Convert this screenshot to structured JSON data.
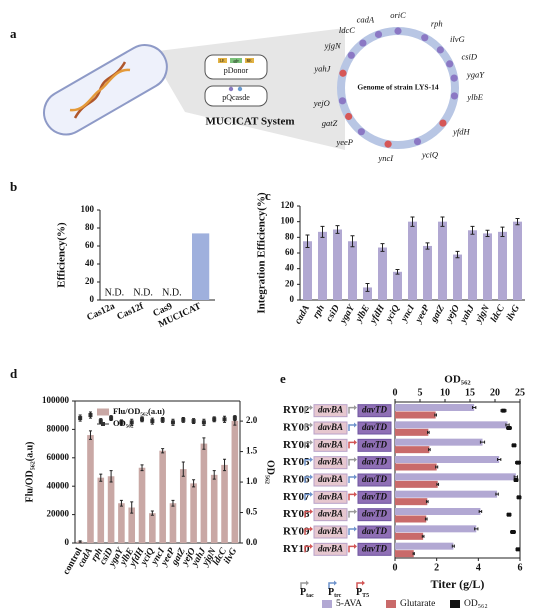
{
  "diagram": {
    "panel": "a",
    "plasmids": [
      "pDonor",
      "pQcasde"
    ],
    "donor_parts": [
      "LE",
      "gfp",
      "RE"
    ],
    "system": "MUCICAT System",
    "genome": "Genome of strain LYS-14",
    "sites": [
      "oriC",
      "rph",
      "ilvG",
      "csiD",
      "ygaY",
      "ylbE",
      "yfdH",
      "yciQ",
      "yncI",
      "yeeP",
      "gatZ",
      "yejO",
      "yahJ",
      "yjgN",
      "ldcC",
      "cadA"
    ]
  },
  "chart_data": [
    {
      "type": "bar",
      "panel": "b",
      "ylabel": "Efficiency(%)",
      "categories": [
        "Cas12a",
        "Cas12f",
        "Cas9",
        "MUCICAT"
      ],
      "values": [
        null,
        null,
        null,
        74
      ],
      "value_labels": [
        "N.D.",
        "N.D.",
        "N.D.",
        null
      ],
      "color": "#9fb0dd",
      "ylim": [
        0,
        100
      ],
      "yticks": [
        0,
        20,
        40,
        60,
        80,
        100
      ]
    },
    {
      "type": "bar",
      "panel": "c",
      "ylabel": "Integration Efficiency(%)",
      "categories": [
        "cadA",
        "rph",
        "csiD",
        "ygaY",
        "ylbE",
        "yfdH",
        "yciQ",
        "yncI",
        "yeeP",
        "gatZ",
        "yejO",
        "yahJ",
        "yjgN",
        "ldcC",
        "ilvG"
      ],
      "values": [
        75,
        87,
        90,
        75,
        16,
        67,
        36,
        100,
        69,
        100,
        58,
        89,
        85,
        87,
        100
      ],
      "errors": [
        8,
        7,
        5,
        7,
        5,
        5,
        3,
        6,
        4,
        6,
        4,
        5,
        4,
        6,
        4
      ],
      "color": "#b1a8d2",
      "ylim": [
        0,
        120
      ],
      "yticks": [
        0,
        20,
        40,
        60,
        80,
        100,
        120
      ]
    },
    {
      "type": "bar_dot",
      "panel": "d",
      "ylabel": "Flu/OD₅₆₂(a.u)",
      "y2label": "OD₅₆₂",
      "legend": "upper left",
      "categories": [
        "control",
        "cadA",
        "rph",
        "csiD",
        "ygaY",
        "ylbE",
        "yfdH",
        "yciQ",
        "yncI",
        "yeeP",
        "gatZ",
        "yejO",
        "yahJ",
        "yjgN",
        "ldcC",
        "ilvG"
      ],
      "series": [
        {
          "name": "Flu/OD₅₆₂(a.u)",
          "color": "#c9a8a5",
          "values": [
            1000,
            76000,
            46000,
            47000,
            28000,
            25000,
            53000,
            21000,
            65000,
            28000,
            52000,
            42000,
            70000,
            48000,
            55000,
            86000
          ],
          "errors": [
            500,
            3000,
            2500,
            4000,
            2000,
            4000,
            2000,
            1500,
            1500,
            2000,
            5000,
            2500,
            4000,
            3000,
            4000,
            3000
          ]
        },
        {
          "name": "OD₅₆₂",
          "color": "#333333",
          "axis": "y2",
          "values": [
            2.05,
            2.1,
            2.0,
            2.05,
            1.98,
            1.98,
            2.03,
            2.0,
            2.02,
            1.98,
            2.02,
            2.0,
            1.98,
            2.03,
            2.03,
            2.05
          ],
          "errors": [
            0.05,
            0.05,
            0.04,
            0.04,
            0.04,
            0.05,
            0.04,
            0.05,
            0.04,
            0.05,
            0.04,
            0.04,
            0.05,
            0.04,
            0.05,
            0.04
          ]
        }
      ],
      "ylim": [
        0,
        100000
      ],
      "yticks": [
        0,
        20000,
        40000,
        60000,
        80000,
        100000
      ],
      "y2lim": [
        0,
        2.33
      ],
      "y2ticks": [
        {
          "value": 0,
          "label": "0.0"
        },
        0.5,
        {
          "value": 1,
          "label": "1.0"
        },
        1.5,
        {
          "value": 2,
          "label": "2.0"
        }
      ]
    },
    {
      "type": "hbar_dot",
      "panel": "e",
      "xlabel": "Titer (g/L)",
      "x2label": "OD₅₆₂",
      "categories": [
        "RY02",
        "RY03",
        "RY04",
        "RY05",
        "RY06",
        "RY07",
        "RY08",
        "RY09",
        "RY10"
      ],
      "parts": [
        "davBA",
        "davTD"
      ],
      "promoter_prefix": "P",
      "promoters": [
        "tac",
        "trc",
        "T5"
      ],
      "promoter_colors": [
        "#9a9a9a",
        "#6f93cc",
        "#d25555"
      ],
      "series": [
        {
          "name": "5-AVA",
          "color": "#b2a8d3",
          "values": [
            3.8,
            5.4,
            4.2,
            5.0,
            5.8,
            4.9,
            4.1,
            3.9,
            2.8
          ],
          "errors": [
            0.08,
            0.08,
            0.1,
            0.08,
            0.08,
            0.06,
            0.06,
            0.08,
            0.05
          ]
        },
        {
          "name": "Glutarate",
          "color": "#c96a6a",
          "values": [
            1.95,
            1.6,
            1.65,
            2.0,
            2.05,
            1.55,
            1.5,
            1.35,
            0.9
          ],
          "errors": [
            0.04,
            0.04,
            0.04,
            0.05,
            0.04,
            0.04,
            0.04,
            0.04,
            0.03
          ]
        },
        {
          "name": "OD₅₆₂",
          "color": "#111111",
          "axis": "x2",
          "values": [
            21.7,
            22.8,
            23.8,
            24.6,
            24.2,
            24.8,
            22.8,
            23.6,
            24.6
          ],
          "errors": [
            0.5,
            0.5,
            0.4,
            0.5,
            0.4,
            0.4,
            0.4,
            0.5,
            0.4
          ]
        }
      ],
      "xlim": [
        0,
        6
      ],
      "xticks": [
        0,
        2,
        4,
        6
      ],
      "x2lim": [
        0,
        25
      ],
      "x2ticks": [
        0,
        5,
        10,
        15,
        20,
        25
      ]
    }
  ]
}
